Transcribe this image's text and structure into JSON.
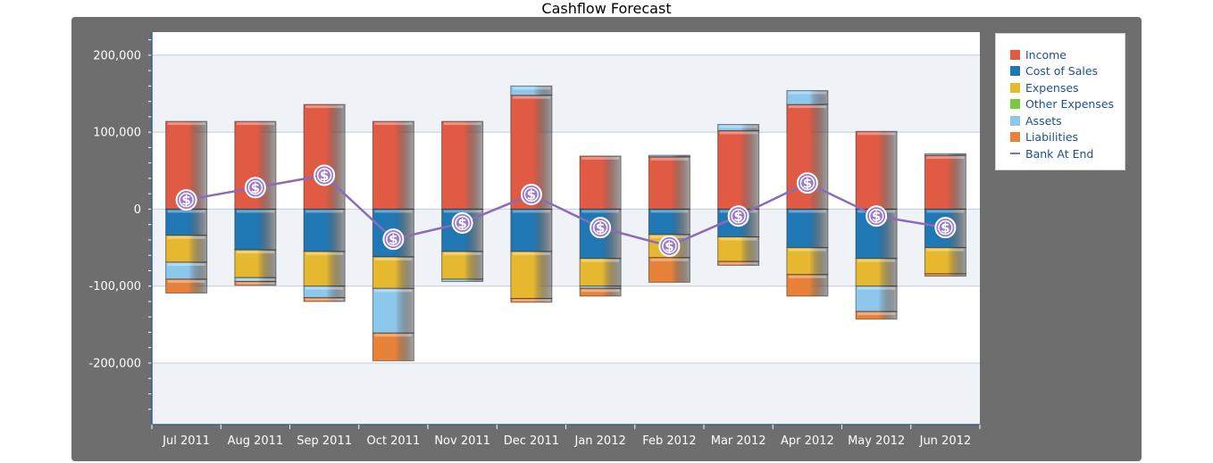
{
  "chart_data": {
    "type": "bar",
    "stacked": true,
    "title": "Cashflow Forecast",
    "xlabel": "",
    "ylabel": "",
    "ylim": [
      -280000,
      230000
    ],
    "yticks": [
      200000,
      100000,
      0,
      -100000,
      -200000
    ],
    "ytick_labels": [
      "200,000",
      "100,000",
      "0",
      "-100,000",
      "-200,000"
    ],
    "grid": true,
    "legend_position": "right",
    "categories": [
      "Jul 2011",
      "Aug 2011",
      "Sep 2011",
      "Oct 2011",
      "Nov 2011",
      "Dec 2011",
      "Jan 2012",
      "Feb 2012",
      "Mar 2012",
      "Apr 2012",
      "May 2012",
      "Jun 2012"
    ],
    "series": [
      {
        "name": "Income",
        "color": "#e05a44",
        "values": [
          114000,
          114000,
          136000,
          114000,
          114000,
          148000,
          69000,
          68000,
          102000,
          136000,
          101000,
          70000
        ]
      },
      {
        "name": "Cost of Sales",
        "color": "#1f77b4",
        "values": [
          -34000,
          -53000,
          -55000,
          -62000,
          -55000,
          -55000,
          -64000,
          -33000,
          -36000,
          -50000,
          -64000,
          -50000
        ]
      },
      {
        "name": "Expenses",
        "color": "#e6b830",
        "values": [
          -35000,
          -36000,
          -45000,
          -41000,
          -36000,
          -61000,
          -36000,
          -30000,
          -32000,
          -35000,
          -36000,
          -34000
        ]
      },
      {
        "name": "Other Expenses",
        "color": "#7ac943",
        "values": [
          0,
          0,
          0,
          0,
          0,
          0,
          0,
          0,
          0,
          0,
          0,
          0
        ]
      },
      {
        "name": "Assets",
        "color": "#8cc8ec",
        "values": [
          -22000,
          -5000,
          -15000,
          -58000,
          -3000,
          12000,
          -3000,
          2000,
          8000,
          18000,
          -33000,
          2000
        ]
      },
      {
        "name": "Liabilities",
        "color": "#e8823a",
        "values": [
          -18000,
          -5000,
          -5000,
          -36000,
          0,
          -5000,
          -10000,
          -32000,
          -5000,
          -28000,
          -10000,
          -3000
        ]
      }
    ],
    "line_series": {
      "name": "Bank At End",
      "color": "#8b6bb8",
      "values": [
        12000,
        28000,
        44000,
        -39000,
        -18000,
        19000,
        -24000,
        -48000,
        -9000,
        34000,
        -9000,
        -24000
      ]
    }
  }
}
